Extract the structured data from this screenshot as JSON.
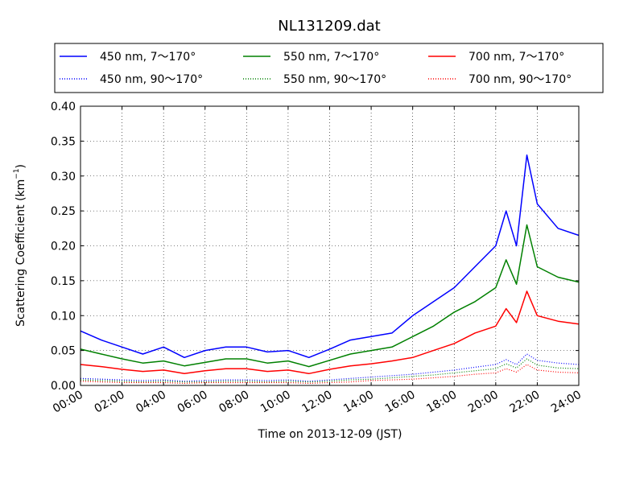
{
  "chart_data": {
    "type": "line",
    "title": "NL131209.dat",
    "xlabel": "Time on 2013-12-09 (JST)",
    "ylabel": "Scattering Coefficient (km",
    "ylabel_sup": "−1",
    "ylabel_close": ")",
    "xlim": [
      "00:00",
      "24:00"
    ],
    "ylim": [
      0,
      0.4
    ],
    "x_ticks": [
      "00:00",
      "02:00",
      "04:00",
      "06:00",
      "08:00",
      "10:00",
      "12:00",
      "14:00",
      "16:00",
      "18:00",
      "20:00",
      "22:00",
      "24:00"
    ],
    "y_ticks": [
      "0.00",
      "0.05",
      "0.10",
      "0.15",
      "0.20",
      "0.25",
      "0.30",
      "0.35",
      "0.40"
    ],
    "grid": true,
    "legend_position": "top",
    "x": [
      "00:00",
      "01:00",
      "02:00",
      "03:00",
      "04:00",
      "05:00",
      "06:00",
      "07:00",
      "08:00",
      "09:00",
      "10:00",
      "11:00",
      "12:00",
      "13:00",
      "14:00",
      "15:00",
      "16:00",
      "17:00",
      "18:00",
      "19:00",
      "20:00",
      "20:30",
      "21:00",
      "21:30",
      "22:00",
      "23:00",
      "24:00"
    ],
    "series": [
      {
        "name": "450 nm, 7～170°",
        "color": "#0000ff",
        "style": "solid",
        "values": [
          0.078,
          0.065,
          0.055,
          0.045,
          0.055,
          0.04,
          0.05,
          0.055,
          0.055,
          0.048,
          0.05,
          0.04,
          0.052,
          0.065,
          0.07,
          0.075,
          0.1,
          0.12,
          0.14,
          0.17,
          0.2,
          0.25,
          0.2,
          0.33,
          0.26,
          0.225,
          0.215
        ]
      },
      {
        "name": "550 nm, 7～170°",
        "color": "#008000",
        "style": "solid",
        "values": [
          0.052,
          0.045,
          0.038,
          0.032,
          0.035,
          0.028,
          0.033,
          0.038,
          0.038,
          0.032,
          0.035,
          0.027,
          0.036,
          0.045,
          0.05,
          0.055,
          0.07,
          0.085,
          0.105,
          0.12,
          0.14,
          0.18,
          0.145,
          0.23,
          0.17,
          0.155,
          0.148
        ]
      },
      {
        "name": "700 nm, 7～170°",
        "color": "#ff0000",
        "style": "solid",
        "values": [
          0.03,
          0.027,
          0.023,
          0.02,
          0.022,
          0.017,
          0.021,
          0.024,
          0.024,
          0.02,
          0.022,
          0.017,
          0.023,
          0.028,
          0.031,
          0.035,
          0.04,
          0.05,
          0.06,
          0.075,
          0.085,
          0.11,
          0.09,
          0.135,
          0.1,
          0.092,
          0.088
        ]
      },
      {
        "name": "450 nm, 90～170°",
        "color": "#0000ff",
        "style": "dotted",
        "values": [
          0.01,
          0.009,
          0.008,
          0.007,
          0.008,
          0.006,
          0.007,
          0.008,
          0.008,
          0.007,
          0.008,
          0.006,
          0.008,
          0.01,
          0.012,
          0.014,
          0.016,
          0.019,
          0.022,
          0.026,
          0.03,
          0.037,
          0.03,
          0.045,
          0.036,
          0.032,
          0.03
        ]
      },
      {
        "name": "550 nm, 90～170°",
        "color": "#008000",
        "style": "dotted",
        "values": [
          0.008,
          0.007,
          0.006,
          0.005,
          0.006,
          0.005,
          0.005,
          0.006,
          0.006,
          0.005,
          0.006,
          0.005,
          0.006,
          0.008,
          0.009,
          0.011,
          0.013,
          0.015,
          0.018,
          0.021,
          0.024,
          0.031,
          0.025,
          0.038,
          0.029,
          0.025,
          0.024
        ]
      },
      {
        "name": "700 nm, 90～170°",
        "color": "#ff0000",
        "style": "dotted",
        "values": [
          0.006,
          0.005,
          0.004,
          0.004,
          0.004,
          0.003,
          0.004,
          0.004,
          0.004,
          0.004,
          0.004,
          0.003,
          0.004,
          0.005,
          0.007,
          0.008,
          0.009,
          0.011,
          0.013,
          0.016,
          0.018,
          0.024,
          0.019,
          0.03,
          0.022,
          0.019,
          0.018
        ]
      }
    ]
  }
}
